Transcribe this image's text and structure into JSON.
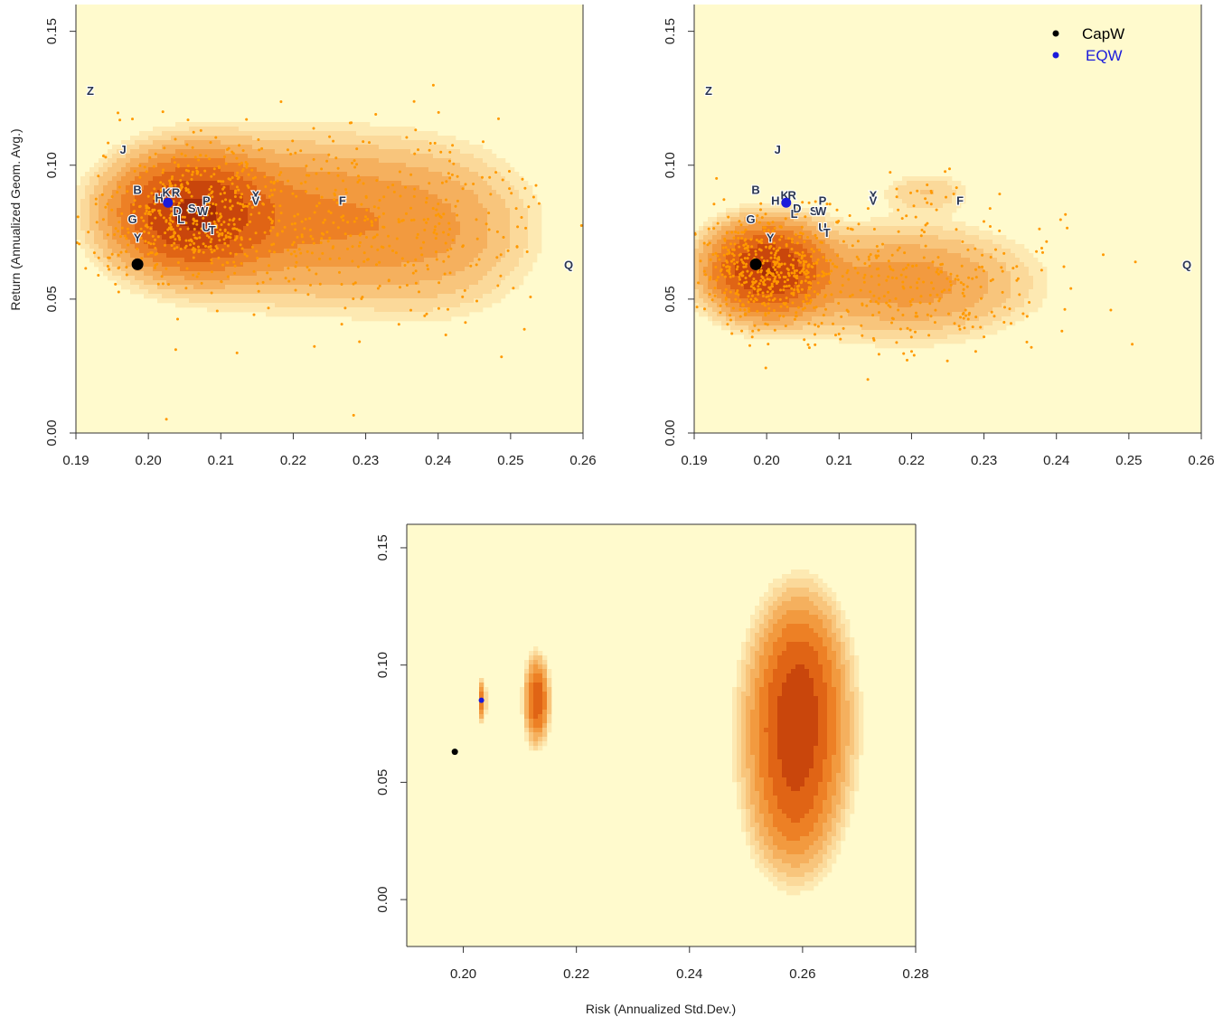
{
  "chart_data": [
    {
      "type": "scatter",
      "panel": "top-left",
      "title": "",
      "xlabel": "",
      "ylabel": "Return (Annualized Geom. Avg.)",
      "xlim": [
        0.19,
        0.26
      ],
      "ylim": [
        0.0,
        0.16
      ],
      "xticks": [
        "0.19",
        "0.20",
        "0.21",
        "0.22",
        "0.23",
        "0.24",
        "0.25",
        "0.26"
      ],
      "yticks": [
        "0.00",
        "0.05",
        "0.10",
        "0.15"
      ],
      "density_centers": [
        {
          "x": 0.206,
          "y": 0.082,
          "sx": 0.006,
          "sy": 0.012,
          "w": 1.0
        },
        {
          "x": 0.222,
          "y": 0.08,
          "sx": 0.012,
          "sy": 0.017,
          "w": 0.28
        },
        {
          "x": 0.24,
          "y": 0.075,
          "sx": 0.008,
          "sy": 0.018,
          "w": 0.12
        }
      ],
      "labeled_points": [
        {
          "label": "Z",
          "x": 0.192,
          "y": 0.128
        },
        {
          "label": "J",
          "x": 0.1965,
          "y": 0.106
        },
        {
          "label": "B",
          "x": 0.1985,
          "y": 0.091
        },
        {
          "label": "H",
          "x": 0.2015,
          "y": 0.088
        },
        {
          "label": "K",
          "x": 0.2025,
          "y": 0.09
        },
        {
          "label": "R",
          "x": 0.2038,
          "y": 0.09
        },
        {
          "label": "P",
          "x": 0.208,
          "y": 0.087
        },
        {
          "label": "G",
          "x": 0.1978,
          "y": 0.08
        },
        {
          "label": "Y",
          "x": 0.1985,
          "y": 0.073
        },
        {
          "label": "D",
          "x": 0.204,
          "y": 0.083
        },
        {
          "label": "S",
          "x": 0.206,
          "y": 0.084
        },
        {
          "label": "W",
          "x": 0.2075,
          "y": 0.083
        },
        {
          "label": "L",
          "x": 0.2045,
          "y": 0.08
        },
        {
          "label": "U",
          "x": 0.208,
          "y": 0.077
        },
        {
          "label": "T",
          "x": 0.2088,
          "y": 0.076
        },
        {
          "label": "X",
          "x": 0.2148,
          "y": 0.089
        },
        {
          "label": "V",
          "x": 0.2148,
          "y": 0.087
        },
        {
          "label": "F",
          "x": 0.2268,
          "y": 0.087
        },
        {
          "label": "Q",
          "x": 0.258,
          "y": 0.063
        }
      ],
      "capw": {
        "x": 0.1985,
        "y": 0.063
      },
      "eqw": {
        "x": 0.2027,
        "y": 0.086
      }
    },
    {
      "type": "scatter",
      "panel": "top-right",
      "title": "",
      "xlabel": "",
      "ylabel": "",
      "xlim": [
        0.19,
        0.26
      ],
      "ylim": [
        0.0,
        0.16
      ],
      "xticks": [
        "0.19",
        "0.20",
        "0.21",
        "0.22",
        "0.23",
        "0.24",
        "0.25",
        "0.26"
      ],
      "yticks": [
        "0.00",
        "0.05",
        "0.10",
        "0.15"
      ],
      "density_centers": [
        {
          "x": 0.2,
          "y": 0.061,
          "sx": 0.0045,
          "sy": 0.0095,
          "w": 1.0
        },
        {
          "x": 0.219,
          "y": 0.056,
          "sx": 0.01,
          "sy": 0.012,
          "w": 0.22
        },
        {
          "x": 0.222,
          "y": 0.09,
          "sx": 0.004,
          "sy": 0.005,
          "w": 0.07
        }
      ],
      "labeled_points": [
        {
          "label": "Z",
          "x": 0.192,
          "y": 0.128
        },
        {
          "label": "J",
          "x": 0.2015,
          "y": 0.106
        },
        {
          "label": "B",
          "x": 0.1985,
          "y": 0.091
        },
        {
          "label": "H",
          "x": 0.2012,
          "y": 0.087
        },
        {
          "label": "K",
          "x": 0.2025,
          "y": 0.089
        },
        {
          "label": "R",
          "x": 0.2035,
          "y": 0.089
        },
        {
          "label": "P",
          "x": 0.2077,
          "y": 0.087
        },
        {
          "label": "G",
          "x": 0.1978,
          "y": 0.08
        },
        {
          "label": "Y",
          "x": 0.2005,
          "y": 0.073
        },
        {
          "label": "D",
          "x": 0.2042,
          "y": 0.084
        },
        {
          "label": "L",
          "x": 0.2038,
          "y": 0.082
        },
        {
          "label": "S",
          "x": 0.2065,
          "y": 0.083
        },
        {
          "label": "W",
          "x": 0.2075,
          "y": 0.083
        },
        {
          "label": "U",
          "x": 0.2077,
          "y": 0.077
        },
        {
          "label": "T",
          "x": 0.2083,
          "y": 0.075
        },
        {
          "label": "X",
          "x": 0.2147,
          "y": 0.089
        },
        {
          "label": "V",
          "x": 0.2147,
          "y": 0.087
        },
        {
          "label": "F",
          "x": 0.2267,
          "y": 0.087
        },
        {
          "label": "Q",
          "x": 0.258,
          "y": 0.063
        }
      ],
      "capw": {
        "x": 0.1985,
        "y": 0.063
      },
      "eqw": {
        "x": 0.2027,
        "y": 0.086
      },
      "legend": {
        "placement": "top-right",
        "entries": [
          {
            "label": "CapW",
            "color": "#000000"
          },
          {
            "label": "EQW",
            "color": "#1a1adb"
          }
        ]
      }
    },
    {
      "type": "heatmap",
      "panel": "bottom",
      "title": "",
      "xlabel": "Risk (Annualized Std.Dev.)",
      "ylabel": "",
      "xlim": [
        0.19,
        0.28
      ],
      "ylim": [
        -0.02,
        0.16
      ],
      "xticks": [
        "0.20",
        "0.22",
        "0.24",
        "0.26",
        "0.28"
      ],
      "yticks": [
        "0.00",
        "0.05",
        "0.10",
        "0.15"
      ],
      "density_centers": [
        {
          "x": 0.259,
          "y": 0.072,
          "sx": 0.0045,
          "sy": 0.021,
          "w": 1.0
        },
        {
          "x": 0.2595,
          "y": 0.1,
          "sx": 0.004,
          "sy": 0.018,
          "w": 0.45
        },
        {
          "x": 0.2585,
          "y": 0.04,
          "sx": 0.004,
          "sy": 0.017,
          "w": 0.4
        },
        {
          "x": 0.213,
          "y": 0.085,
          "sx": 0.0011,
          "sy": 0.009,
          "w": 0.85
        },
        {
          "x": 0.2033,
          "y": 0.085,
          "sx": 0.00035,
          "sy": 0.0045,
          "w": 0.55
        }
      ],
      "capw": {
        "x": 0.1985,
        "y": 0.063
      },
      "eqw": {
        "x": 0.2032,
        "y": 0.085
      }
    }
  ],
  "colors": {
    "background": "#fffacd",
    "points": "#ff9900",
    "label_text": "#2a3550",
    "capw": "#000000",
    "eqw": "#1a1adb",
    "density_ramp": [
      "#fffacd",
      "#fde9b2",
      "#fbd99a",
      "#f8c57c",
      "#f5b05e",
      "#f29a3f",
      "#ed8025",
      "#e06415",
      "#c9460c",
      "#a52c08",
      "#7d1406"
    ]
  }
}
